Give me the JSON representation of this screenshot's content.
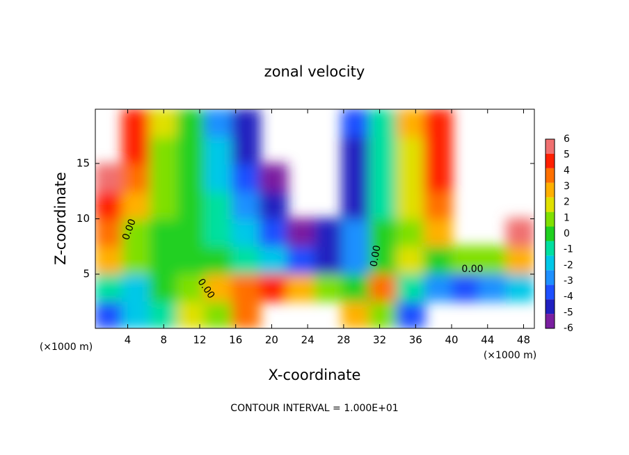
{
  "chart_data": {
    "type": "heatmap",
    "title": "zonal velocity",
    "xlabel": "X-coordinate",
    "ylabel": "Z-coordinate",
    "x_unit_label": "(×1000 m)",
    "footer": "CONTOUR INTERVAL = 1.000E+01",
    "contour_labels": [
      "0.00",
      "0.00",
      "0.00",
      "0.00"
    ],
    "xlim": [
      0.4,
      49.2
    ],
    "ylim": [
      0.1,
      19.9
    ],
    "xticks": [
      4,
      8,
      12,
      16,
      20,
      24,
      28,
      32,
      36,
      40,
      44,
      48
    ],
    "yticks": [
      5,
      10,
      15
    ],
    "x": [
      1.9,
      4.95,
      8.0,
      11.05,
      14.1,
      17.15,
      20.2,
      23.25,
      26.3,
      29.35,
      32.4,
      35.45,
      38.5,
      41.55,
      44.6,
      47.65
    ],
    "y": [
      1.34,
      3.81,
      6.29,
      8.76,
      11.24,
      13.71,
      16.19,
      18.66
    ],
    "z": [
      [
        -4,
        -2,
        -1,
        2,
        1,
        4,
        null,
        null,
        null,
        3,
        1,
        -4,
        null,
        null,
        null,
        null
      ],
      [
        -1,
        -2,
        0,
        1,
        3,
        4,
        5,
        3,
        1,
        0,
        4,
        -1,
        -3,
        -4,
        -3,
        -2
      ],
      [
        3,
        1,
        0,
        0,
        0,
        -1,
        -2,
        -4,
        -5,
        -3,
        0,
        2,
        0,
        1,
        1,
        3
      ],
      [
        4,
        1,
        0,
        0,
        -1,
        -2,
        -4,
        -6,
        -5,
        -3,
        0,
        1,
        3,
        null,
        null,
        6
      ],
      [
        5,
        3,
        1,
        0,
        -1,
        -3,
        -5,
        null,
        null,
        -5,
        -1,
        2,
        4,
        null,
        null,
        null
      ],
      [
        6,
        4,
        1,
        0,
        -2,
        -4,
        -6,
        null,
        null,
        -5,
        -1,
        2,
        5,
        null,
        null,
        null
      ],
      [
        null,
        5,
        1,
        0,
        -2,
        -5,
        null,
        null,
        null,
        -5,
        -1,
        2,
        5,
        null,
        null,
        null
      ],
      [
        null,
        5,
        2,
        0,
        -3,
        -5,
        null,
        null,
        null,
        -4,
        -1,
        3,
        5,
        null,
        null,
        null
      ]
    ],
    "levels": [
      -6,
      -5,
      -4,
      -3,
      -2,
      -1,
      0,
      1,
      2,
      3,
      4,
      5,
      6
    ],
    "colors": [
      "#7a1fa0",
      "#2020c0",
      "#1e50ff",
      "#1e90ff",
      "#00c8e8",
      "#00e0a0",
      "#20d020",
      "#80e000",
      "#e0e000",
      "#ffb000",
      "#ff7000",
      "#ff2000",
      "#f07070"
    ]
  }
}
